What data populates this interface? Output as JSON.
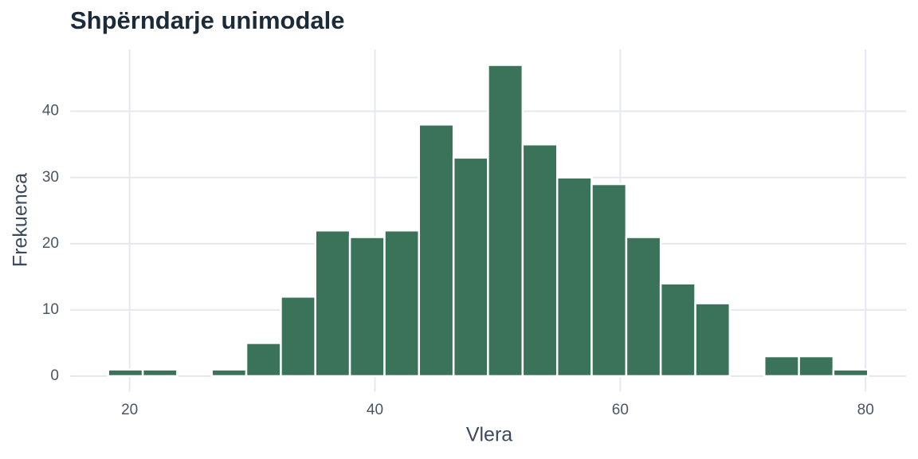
{
  "chart_data": {
    "type": "histogram",
    "title": "Shpërndarje unimodale",
    "x_label": "Vlera",
    "y_label": "Frekuenca",
    "bins": [
      18.25,
      21.07,
      23.88,
      26.7,
      29.51,
      32.33,
      35.14,
      37.96,
      40.78,
      43.59,
      46.41,
      49.22,
      52.04,
      54.86,
      57.67,
      60.49,
      63.3,
      66.12,
      68.93,
      71.75,
      74.57,
      77.38,
      80.2
    ],
    "values": [
      1,
      1,
      0,
      1,
      5,
      12,
      22,
      21,
      22,
      38,
      33,
      47,
      35,
      30,
      29,
      21,
      14,
      11,
      0,
      3,
      3,
      1
    ],
    "color": "#3a735a",
    "xlim": [
      15.15,
      83.3
    ],
    "xticks": [
      20,
      40,
      60,
      80
    ],
    "ylim": [
      -2.35,
      49.35
    ],
    "yticks": [
      0,
      10,
      20,
      30,
      40
    ],
    "grid": true
  }
}
